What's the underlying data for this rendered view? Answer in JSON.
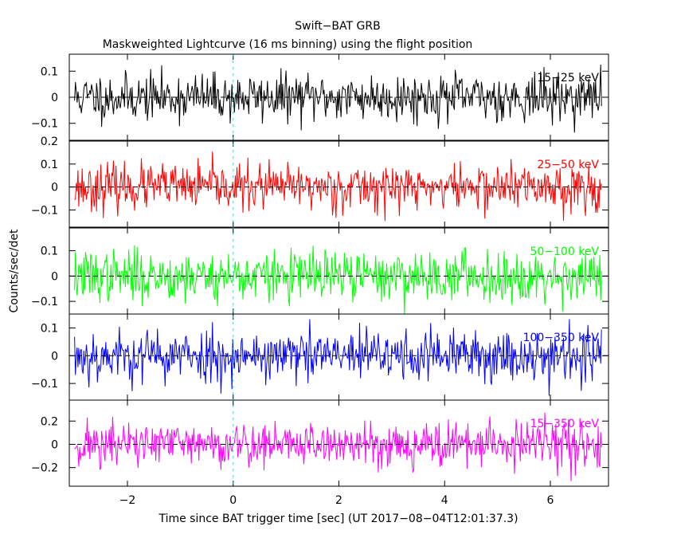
{
  "chart_data": {
    "type": "line",
    "title": "Swift−BAT GRB",
    "subtitle": "Maskweighted Lightcurve (16 ms binning) using the flight position",
    "xlabel": "Time since BAT trigger time [sec] (UT 2017−08−04T12:01:37.3)",
    "ylabel": "Counts/sec/det",
    "xlim": [
      -3.1,
      7.1
    ],
    "xticks": [
      {
        "value": -2,
        "label": "−2"
      },
      {
        "value": 0,
        "label": "0"
      },
      {
        "value": 2,
        "label": "2"
      },
      {
        "value": 4,
        "label": "4"
      },
      {
        "value": 6,
        "label": "6"
      }
    ],
    "bin_seconds": 0.016,
    "x_start": -3.0,
    "x_end": 6.96,
    "trigger_marker_x": 0,
    "panels": [
      {
        "band": "15−25 keV",
        "color": "#000000",
        "ylim": [
          -0.165,
          0.165
        ],
        "yticks": [
          {
            "value": 0.1,
            "label": "0.1"
          },
          {
            "value": 0,
            "label": "0"
          },
          {
            "value": -0.1,
            "label": "−0.1"
          }
        ],
        "noise_sigma": 0.045,
        "seed": 11
      },
      {
        "band": "25−50 keV",
        "color": "#ff0000",
        "ylim": [
          -0.175,
          0.2
        ],
        "yticks": [
          {
            "value": 0.2,
            "label": "0.2"
          },
          {
            "value": 0.1,
            "label": "0.1"
          },
          {
            "value": 0,
            "label": "0"
          },
          {
            "value": -0.1,
            "label": "−0.1"
          }
        ],
        "noise_sigma": 0.05,
        "seed": 23
      },
      {
        "band": "50−100 keV",
        "color": "#00ff00",
        "ylim": [
          -0.15,
          0.19
        ],
        "yticks": [
          {
            "value": 0.1,
            "label": "0.1"
          },
          {
            "value": 0,
            "label": "0"
          },
          {
            "value": -0.1,
            "label": "−0.1"
          }
        ],
        "noise_sigma": 0.05,
        "seed": 37
      },
      {
        "band": "100−350 keV",
        "color": "#0000ff",
        "ylim": [
          -0.16,
          0.15
        ],
        "yticks": [
          {
            "value": 0.1,
            "label": "0.1"
          },
          {
            "value": 0,
            "label": "0"
          },
          {
            "value": -0.1,
            "label": "−0.1"
          }
        ],
        "noise_sigma": 0.048,
        "seed": 53
      },
      {
        "band": "15−350 keV",
        "color": "#ff00ff",
        "ylim": [
          -0.36,
          0.38
        ],
        "yticks": [
          {
            "value": 0.2,
            "label": "0.2"
          },
          {
            "value": 0,
            "label": "0"
          },
          {
            "value": -0.2,
            "label": "−0.2"
          }
        ],
        "noise_sigma": 0.1,
        "seed": 71
      }
    ]
  }
}
